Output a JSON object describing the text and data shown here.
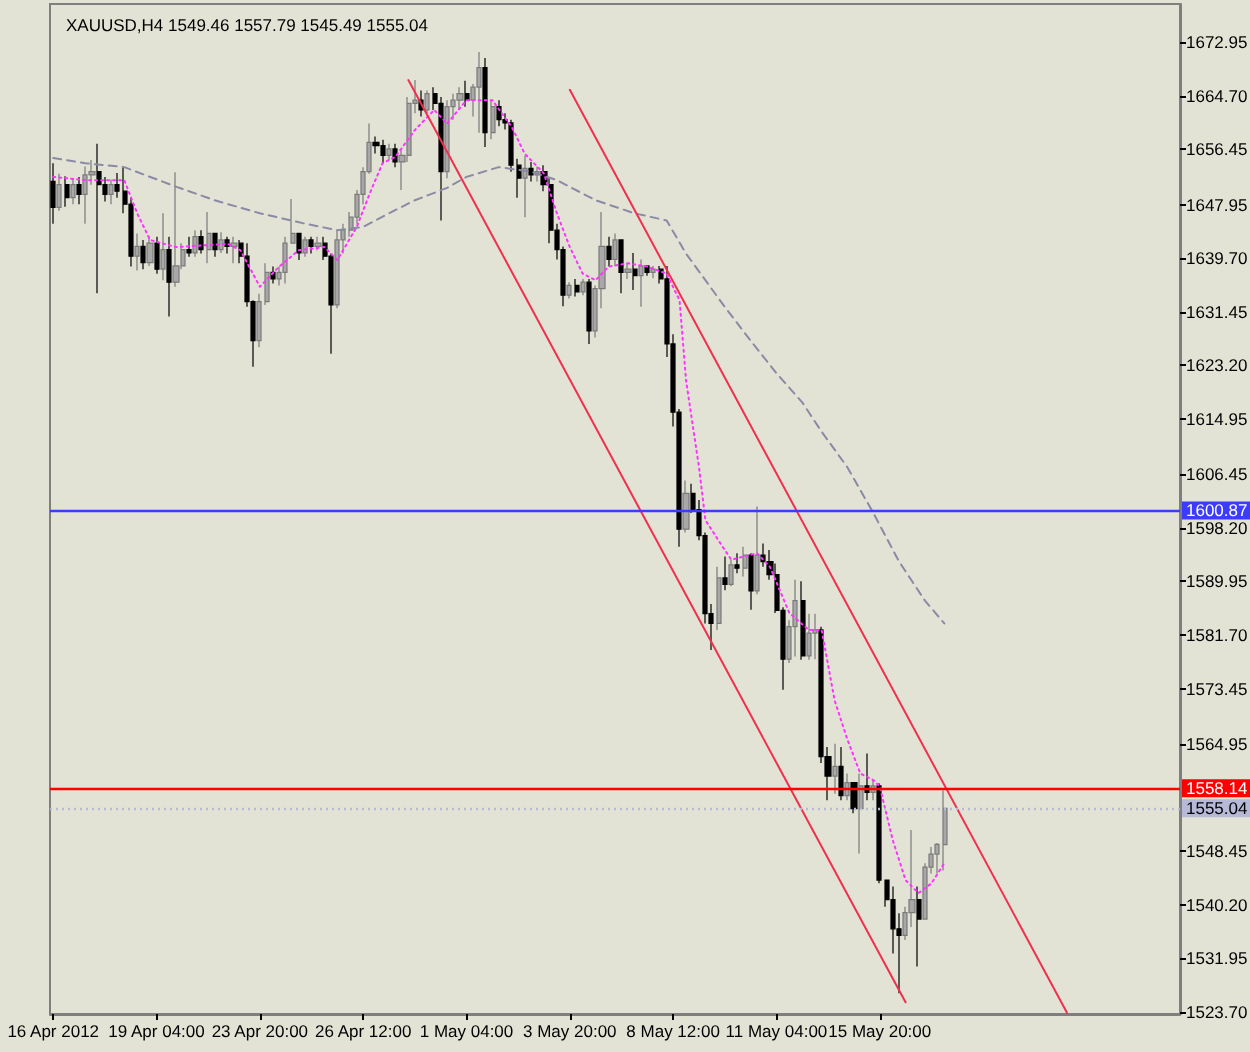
{
  "chart_data": {
    "type": "candlestick",
    "title": "XAUUSD,H4 1549.46 1557.79 1545.49 1555.04",
    "categories": [
      "16 Apr 2012",
      null,
      null,
      null,
      null,
      null,
      null,
      null,
      null,
      null,
      null,
      null,
      null,
      null,
      null,
      null,
      "19 Apr 04:00",
      null,
      null,
      null,
      null,
      null,
      null,
      null,
      null,
      null,
      null,
      null,
      null,
      null,
      null,
      null,
      "23 Apr 20:00",
      null,
      null,
      null,
      null,
      null,
      null,
      null,
      null,
      null,
      null,
      null,
      null,
      null,
      null,
      null,
      "26 Apr 12:00",
      null,
      null,
      null,
      null,
      null,
      null,
      null,
      null,
      null,
      null,
      null,
      null,
      null,
      null,
      null,
      "1 May 04:00",
      null,
      null,
      null,
      null,
      null,
      null,
      null,
      null,
      null,
      null,
      null,
      null,
      null,
      null,
      null,
      "3 May 20:00",
      null,
      null,
      null,
      null,
      null,
      null,
      null,
      null,
      null,
      null,
      null,
      null,
      null,
      null,
      null,
      "8 May 12:00",
      null,
      null,
      null,
      null,
      null,
      null,
      null,
      null,
      null,
      null,
      null,
      null,
      null,
      null,
      null,
      "11 May 04:00",
      null,
      null,
      null,
      null,
      null,
      null,
      null,
      null,
      null,
      null,
      null,
      null,
      null,
      null,
      null,
      "15 May 20:00",
      null,
      null,
      null,
      null,
      null,
      null,
      null,
      null,
      null,
      null,
      null,
      null,
      null,
      null,
      null,
      null,
      null,
      null,
      null,
      null,
      null,
      null,
      null,
      null,
      null,
      null,
      null,
      null,
      null,
      null,
      null,
      null,
      null,
      null,
      null,
      null,
      null,
      null,
      null,
      null,
      null,
      null,
      null,
      null,
      null,
      null
    ],
    "ohlc": [
      [
        1651.5,
        1654.3,
        1645.0,
        1647.5
      ],
      [
        1647.5,
        1652.7,
        1647.0,
        1651.0
      ],
      [
        1651.0,
        1652.3,
        1647.6,
        1649.0
      ],
      [
        1649.0,
        1652.0,
        1648.0,
        1651.0
      ],
      [
        1651.0,
        1652.2,
        1648.0,
        1649.5
      ],
      [
        1649.5,
        1653.8,
        1645.0,
        1652.5
      ],
      [
        1652.5,
        1654.8,
        1651.0,
        1653.0
      ],
      [
        1653.0,
        1657.3,
        1634.3,
        1651.0
      ],
      [
        1651.0,
        1652.2,
        1648.4,
        1649.5
      ],
      [
        1649.5,
        1651.8,
        1648.0,
        1651.0
      ],
      [
        1651.0,
        1652.8,
        1649.0,
        1650.0
      ],
      [
        1650.0,
        1653.8,
        1646.6,
        1648.0
      ],
      [
        1648.0,
        1649.0,
        1638.4,
        1640.0
      ],
      [
        1640.0,
        1643.5,
        1637.8,
        1641.5
      ],
      [
        1641.5,
        1642.5,
        1638.0,
        1639.0
      ],
      [
        1639.0,
        1643.0,
        1638.5,
        1642.0
      ],
      [
        1642.0,
        1643.0,
        1637.3,
        1638.0
      ],
      [
        1638.0,
        1646.6,
        1636.3,
        1641.0
      ],
      [
        1641.0,
        1643.0,
        1630.7,
        1636.0
      ],
      [
        1636.0,
        1652.9,
        1635.3,
        1638.5
      ],
      [
        1638.5,
        1642.0,
        1638.0,
        1641.0
      ],
      [
        1641.0,
        1643.0,
        1639.9,
        1640.5
      ],
      [
        1640.5,
        1644.0,
        1639.9,
        1643.0
      ],
      [
        1643.0,
        1644.0,
        1640.4,
        1641.0
      ],
      [
        1641.0,
        1646.8,
        1638.9,
        1643.5
      ],
      [
        1643.5,
        1643.5,
        1639.9,
        1641.0
      ],
      [
        1641.0,
        1643.7,
        1640.5,
        1642.5
      ],
      [
        1642.5,
        1643.0,
        1640.4,
        1641.5
      ],
      [
        1641.5,
        1643.0,
        1638.9,
        1642.0
      ],
      [
        1642.0,
        1642.5,
        1638.9,
        1640.0
      ],
      [
        1640.0,
        1642.0,
        1632.2,
        1633.0
      ],
      [
        1633.0,
        1633.2,
        1623.0,
        1627.0
      ],
      [
        1627.0,
        1634.2,
        1626.0,
        1633.0
      ],
      [
        1633.0,
        1638.9,
        1632.5,
        1637.5
      ],
      [
        1637.5,
        1638.4,
        1635.8,
        1636.5
      ],
      [
        1636.5,
        1638.4,
        1635.5,
        1637.5
      ],
      [
        1637.5,
        1643.0,
        1635.8,
        1642.0
      ],
      [
        1642.0,
        1648.8,
        1641.9,
        1643.5
      ],
      [
        1643.5,
        1643.5,
        1639.4,
        1640.5
      ],
      [
        1640.5,
        1643.0,
        1639.9,
        1642.5
      ],
      [
        1642.5,
        1643.0,
        1640.4,
        1641.5
      ],
      [
        1641.5,
        1643.0,
        1640.9,
        1642.0
      ],
      [
        1642.0,
        1643.0,
        1639.4,
        1640.0
      ],
      [
        1640.0,
        1640.4,
        1625.0,
        1632.5
      ],
      [
        1632.5,
        1644.0,
        1632.0,
        1642.5
      ],
      [
        1642.5,
        1645.0,
        1640.4,
        1644.0
      ],
      [
        1644.0,
        1646.8,
        1643.0,
        1646.0
      ],
      [
        1646.0,
        1650.2,
        1645.0,
        1649.5
      ],
      [
        1649.5,
        1653.7,
        1648.0,
        1653.0
      ],
      [
        1653.0,
        1660.4,
        1652.7,
        1657.5
      ],
      [
        1657.5,
        1658.4,
        1655.8,
        1657.0
      ],
      [
        1657.0,
        1657.9,
        1654.3,
        1655.5
      ],
      [
        1655.5,
        1657.3,
        1654.8,
        1656.5
      ],
      [
        1656.5,
        1657.3,
        1653.7,
        1654.5
      ],
      [
        1654.5,
        1656.3,
        1650.2,
        1655.5
      ],
      [
        1655.5,
        1664.5,
        1654.5,
        1663.5
      ],
      [
        1663.5,
        1667.1,
        1662.0,
        1664.0
      ],
      [
        1664.0,
        1665.5,
        1661.5,
        1662.5
      ],
      [
        1662.5,
        1665.5,
        1662.0,
        1665.0
      ],
      [
        1665.0,
        1666.0,
        1662.5,
        1663.5
      ],
      [
        1663.5,
        1664.5,
        1645.5,
        1653.0
      ],
      [
        1653.0,
        1664.0,
        1652.0,
        1663.0
      ],
      [
        1663.0,
        1665.0,
        1661.0,
        1664.0
      ],
      [
        1664.0,
        1666.0,
        1662.5,
        1665.0
      ],
      [
        1665.0,
        1667.0,
        1663.0,
        1664.0
      ],
      [
        1664.0,
        1666.5,
        1661.5,
        1666.0
      ],
      [
        1666.0,
        1671.4,
        1659.0,
        1669.0
      ],
      [
        1669.0,
        1670.5,
        1656.8,
        1659.0
      ],
      [
        1659.0,
        1664.0,
        1658.0,
        1663.0
      ],
      [
        1663.0,
        1664.0,
        1660.0,
        1661.0
      ],
      [
        1661.0,
        1662.0,
        1659.5,
        1660.5
      ],
      [
        1660.5,
        1661.0,
        1653.0,
        1654.0
      ],
      [
        1654.0,
        1655.0,
        1649.0,
        1652.0
      ],
      [
        1652.0,
        1655.5,
        1646.0,
        1653.5
      ],
      [
        1653.5,
        1654.5,
        1651.5,
        1652.5
      ],
      [
        1652.5,
        1653.8,
        1651.5,
        1653.0
      ],
      [
        1653.0,
        1654.0,
        1650.0,
        1651.0
      ],
      [
        1651.0,
        1652.0,
        1642.0,
        1644.0
      ],
      [
        1644.0,
        1645.0,
        1639.5,
        1641.0
      ],
      [
        1641.0,
        1641.5,
        1632.3,
        1634.0
      ],
      [
        1634.0,
        1636.0,
        1633.5,
        1635.5
      ],
      [
        1635.5,
        1636.5,
        1633.8,
        1634.5
      ],
      [
        1634.5,
        1636.5,
        1634.0,
        1636.0
      ],
      [
        1636.0,
        1636.5,
        1626.5,
        1628.5
      ],
      [
        1628.5,
        1635.5,
        1627.5,
        1635.0
      ],
      [
        1635.0,
        1646.8,
        1632.0,
        1641.5
      ],
      [
        1641.5,
        1643.0,
        1638.4,
        1639.5
      ],
      [
        1639.5,
        1643.5,
        1638.5,
        1642.5
      ],
      [
        1642.5,
        1642.5,
        1634.3,
        1637.5
      ],
      [
        1637.5,
        1639.0,
        1636.5,
        1638.0
      ],
      [
        1638.0,
        1640.5,
        1634.8,
        1637.0
      ],
      [
        1637.0,
        1639.5,
        1632.2,
        1638.5
      ],
      [
        1638.5,
        1638.5,
        1637.0,
        1637.5
      ],
      [
        1637.5,
        1638.5,
        1636.6,
        1638.0
      ],
      [
        1638.0,
        1638.5,
        1635.8,
        1636.5
      ],
      [
        1636.5,
        1638.5,
        1624.5,
        1626.5
      ],
      [
        1626.5,
        1628.0,
        1613.8,
        1616.0
      ],
      [
        1616.0,
        1616.5,
        1595.3,
        1598.0
      ],
      [
        1598.0,
        1605.5,
        1597.5,
        1603.5
      ],
      [
        1603.5,
        1605.0,
        1600.5,
        1601.0
      ],
      [
        1601.0,
        1602.5,
        1596.3,
        1597.0
      ],
      [
        1597.0,
        1597.5,
        1583.5,
        1585.0
      ],
      [
        1585.0,
        1586.5,
        1579.4,
        1583.5
      ],
      [
        1583.5,
        1592.2,
        1582.5,
        1590.5
      ],
      [
        1590.5,
        1593.8,
        1588.6,
        1589.5
      ],
      [
        1589.5,
        1593.3,
        1589.2,
        1592.5
      ],
      [
        1592.5,
        1594.3,
        1591.2,
        1592.0
      ],
      [
        1592.0,
        1595.3,
        1590.7,
        1594.0
      ],
      [
        1594.0,
        1594.3,
        1585.6,
        1588.5
      ],
      [
        1588.5,
        1601.5,
        1588.0,
        1594.0
      ],
      [
        1594.0,
        1595.8,
        1592.2,
        1593.0
      ],
      [
        1593.0,
        1594.8,
        1590.2,
        1591.0
      ],
      [
        1591.0,
        1592.7,
        1585.1,
        1585.5
      ],
      [
        1585.5,
        1586.0,
        1573.3,
        1578.0
      ],
      [
        1578.0,
        1584.0,
        1577.4,
        1583.0
      ],
      [
        1583.0,
        1590.2,
        1578.4,
        1587.0
      ],
      [
        1587.0,
        1590.0,
        1577.9,
        1578.5
      ],
      [
        1578.5,
        1585.0,
        1577.9,
        1582.0
      ],
      [
        1582.0,
        1585.0,
        1578.0,
        1582.5
      ],
      [
        1582.5,
        1583.0,
        1562.0,
        1563.0
      ],
      [
        1563.0,
        1564.5,
        1556.3,
        1560.0
      ],
      [
        1560.0,
        1565.0,
        1557.3,
        1561.5
      ],
      [
        1561.5,
        1564.5,
        1556.3,
        1557.0
      ],
      [
        1557.0,
        1560.4,
        1556.3,
        1559.0
      ],
      [
        1559.0,
        1559.0,
        1554.3,
        1555.0
      ],
      [
        1555.0,
        1560.4,
        1548.1,
        1558.5
      ],
      [
        1558.5,
        1563.5,
        1556.3,
        1557.5
      ],
      [
        1557.5,
        1559.4,
        1556.3,
        1558.5
      ],
      [
        1558.5,
        1558.9,
        1543.5,
        1544.0
      ],
      [
        1544.0,
        1544.0,
        1539.9,
        1541.0
      ],
      [
        1541.0,
        1543.0,
        1532.7,
        1536.5
      ],
      [
        1536.5,
        1538.9,
        1526.6,
        1535.5
      ],
      [
        1535.5,
        1539.9,
        1534.8,
        1539.0
      ],
      [
        1539.0,
        1551.7,
        1536.8,
        1541.0
      ],
      [
        1541.0,
        1543.0,
        1530.7,
        1538.0
      ],
      [
        1538.0,
        1546.6,
        1538.0,
        1546.0
      ],
      [
        1546.0,
        1549.1,
        1545.0,
        1548.0
      ],
      [
        1548.0,
        1549.7,
        1545.0,
        1549.5
      ],
      [
        1549.46,
        1557.79,
        1545.49,
        1555.04
      ],
      null,
      null,
      null,
      null,
      null,
      null,
      null,
      null,
      null,
      null,
      null,
      null,
      null,
      null,
      null,
      null,
      null,
      null,
      null,
      null,
      null,
      null,
      null,
      null,
      null,
      null,
      null,
      null,
      null,
      null,
      null,
      null,
      null,
      null,
      null,
      null
    ],
    "series": [
      {
        "type": "line",
        "color": "#ff33ff",
        "line_style": "dotted",
        "values": [
          1652.2,
          null,
          null,
          null,
          null,
          1651.7,
          null,
          null,
          null,
          null,
          null,
          1651.7,
          null,
          1646.6,
          null,
          1642.5,
          null,
          null,
          null,
          1641.4,
          null,
          null,
          null,
          null,
          null,
          null,
          null,
          1641.9,
          null,
          1640.9,
          null,
          null,
          1635.3,
          null,
          null,
          1638.4,
          null,
          null,
          1640.9,
          null,
          null,
          null,
          1641.4,
          null,
          1639.4,
          null,
          null,
          1644.5,
          null,
          1649.6,
          null,
          1654.3,
          null,
          1655.3,
          null,
          null,
          1659.4,
          null,
          null,
          1662.5,
          null,
          1660.4,
          null,
          null,
          1664.0,
          null,
          null,
          null,
          1664.0,
          null,
          null,
          1659.9,
          null,
          1655.8,
          null,
          null,
          1652.7,
          null,
          1646.6,
          null,
          1641.4,
          null,
          1637.3,
          null,
          1636.3,
          null,
          1638.4,
          null,
          null,
          1638.9,
          null,
          null,
          1638.4,
          null,
          null,
          1637.3,
          null,
          1633.2,
          1620.9,
          null,
          1607.6,
          1599.4,
          null,
          1596.3,
          null,
          1593.3,
          null,
          null,
          null,
          1594.3,
          null,
          1592.2,
          null,
          null,
          1585.1,
          null,
          null,
          1582.5,
          null,
          1582.5,
          null,
          1571.7,
          null,
          1565.6,
          null,
          1560.4,
          null,
          1559.4,
          1558.4,
          null,
          1550.2,
          null,
          1544.0,
          null,
          1542.0,
          null,
          1543.5,
          null,
          1546.6,
          null,
          null,
          null,
          null,
          null,
          null,
          null,
          null,
          null,
          null,
          null,
          null,
          null,
          null,
          null,
          null,
          null,
          null,
          null,
          null,
          null,
          null,
          null,
          null,
          null,
          null,
          null,
          null,
          null,
          null,
          null,
          null,
          null,
          null,
          null,
          null
        ]
      },
      {
        "type": "line",
        "color": "#8a8aa6",
        "line_style": "dashed",
        "values": [
          1655.1,
          null,
          null,
          null,
          null,
          1654.3,
          null,
          null,
          null,
          null,
          null,
          1653.7,
          null,
          null,
          null,
          null,
          null,
          null,
          null,
          1650.7,
          null,
          null,
          null,
          null,
          null,
          1648.6,
          null,
          null,
          null,
          null,
          null,
          null,
          1646.6,
          null,
          null,
          null,
          null,
          null,
          null,
          1645.0,
          null,
          null,
          null,
          null,
          1644.0,
          null,
          null,
          null,
          1644.5,
          null,
          null,
          null,
          1646.6,
          null,
          null,
          null,
          1648.6,
          null,
          null,
          null,
          null,
          1650.5,
          null,
          null,
          1652.2,
          null,
          null,
          null,
          null,
          1653.7,
          null,
          null,
          null,
          null,
          1653.0,
          null,
          null,
          null,
          1651.7,
          null,
          null,
          null,
          null,
          null,
          1648.6,
          null,
          null,
          null,
          null,
          null,
          1646.6,
          null,
          null,
          null,
          null,
          1645.5,
          null,
          null,
          1640.4,
          null,
          null,
          null,
          null,
          null,
          1632.2,
          null,
          null,
          null,
          1627.0,
          null,
          null,
          null,
          1622.0,
          null,
          null,
          null,
          1617.5,
          null,
          null,
          1613.0,
          null,
          null,
          null,
          1607.5,
          null,
          null,
          null,
          1600.5,
          null,
          null,
          null,
          1593.0,
          null,
          null,
          null,
          1587.0,
          null,
          null,
          1583.5,
          null,
          null,
          null,
          null,
          null,
          null,
          null,
          null,
          null,
          null,
          null,
          null,
          null,
          null,
          null,
          null,
          null,
          null,
          null,
          null,
          null,
          null,
          null,
          null,
          null,
          null,
          null,
          null,
          null,
          null,
          null,
          null,
          null,
          null,
          null,
          null
        ]
      },
      {
        "type": "line",
        "color": "#f0304f",
        "line_style": "solid",
        "values": [
          null,
          null,
          null,
          null,
          null,
          null,
          null,
          null,
          null,
          null,
          null,
          null,
          null,
          null,
          null,
          null,
          null,
          null,
          null,
          null,
          null,
          null,
          null,
          null,
          null,
          null,
          null,
          null,
          null,
          null,
          null,
          null,
          null,
          null,
          null,
          null,
          null,
          null,
          null,
          null,
          null,
          null,
          null,
          null,
          null,
          null,
          null,
          null,
          null,
          null,
          null,
          null,
          null,
          null,
          null,
          null,
          null,
          null,
          null,
          null,
          null,
          null,
          null,
          null,
          null,
          null,
          null,
          null,
          null,
          null,
          null,
          null,
          null,
          null,
          null,
          null,
          null,
          null,
          null,
          null,
          1665.6,
          null,
          null,
          null,
          null,
          null,
          null,
          null,
          null,
          null,
          null,
          null,
          null,
          null,
          null,
          null,
          null,
          null,
          null,
          null,
          null,
          null,
          null,
          null,
          null,
          null,
          null,
          null,
          null,
          null,
          null,
          null,
          null,
          null,
          null,
          null,
          null,
          null,
          null,
          null,
          null,
          null,
          null,
          null,
          null,
          null,
          null,
          null,
          null,
          null,
          null,
          null,
          null,
          null,
          null,
          null,
          null,
          null,
          null,
          null,
          null,
          null,
          null,
          null,
          null,
          null,
          null,
          null,
          null,
          null,
          null,
          null,
          null,
          null,
          null,
          null,
          null,
          1523.6,
          null,
          null,
          null,
          null,
          null,
          null,
          null,
          null,
          null,
          null,
          null,
          null,
          null,
          null,
          null,
          null,
          null
        ]
      },
      {
        "type": "line",
        "color": "#f0304f",
        "line_style": "solid",
        "values": [
          null,
          null,
          null,
          null,
          null,
          null,
          null,
          null,
          null,
          null,
          null,
          null,
          null,
          null,
          null,
          null,
          null,
          null,
          null,
          null,
          null,
          null,
          null,
          null,
          null,
          null,
          null,
          null,
          null,
          null,
          null,
          null,
          null,
          null,
          null,
          null,
          null,
          null,
          null,
          null,
          null,
          null,
          null,
          null,
          null,
          null,
          null,
          null,
          null,
          null,
          null,
          null,
          null,
          null,
          null,
          1667.1,
          null,
          null,
          null,
          null,
          null,
          null,
          null,
          null,
          null,
          null,
          null,
          null,
          null,
          null,
          null,
          null,
          null,
          null,
          null,
          null,
          null,
          null,
          null,
          null,
          null,
          null,
          null,
          null,
          null,
          null,
          null,
          null,
          null,
          null,
          null,
          null,
          null,
          null,
          null,
          null,
          null,
          null,
          null,
          null,
          null,
          null,
          null,
          null,
          null,
          null,
          null,
          null,
          null,
          null,
          null,
          null,
          null,
          null,
          null,
          null,
          null,
          null,
          null,
          null,
          null,
          null,
          null,
          null,
          null,
          null,
          null,
          null,
          null,
          null,
          null,
          null,
          1525.2,
          null,
          null,
          null,
          null,
          null,
          null,
          null,
          null,
          null,
          null,
          null,
          null,
          null,
          null,
          null,
          null,
          null,
          null,
          null,
          null,
          null,
          null,
          null,
          null,
          null,
          null,
          null,
          null,
          null,
          null,
          null,
          null,
          null,
          null,
          null,
          null,
          null,
          null,
          null,
          null,
          null,
          null
        ]
      }
    ],
    "ylim": [
      1523.4,
      1678.8
    ],
    "yticks": [
      {
        "value": 1523.7,
        "label": "1523.70"
      },
      1531.95,
      {
        "value": 1540.2,
        "label": "1540.20"
      },
      1548.45,
      1564.95,
      1573.45,
      {
        "value": 1581.7,
        "label": "1581.70"
      },
      1589.95,
      {
        "value": 1598.2,
        "label": "1598.20"
      },
      1606.45,
      1614.95,
      {
        "value": 1623.2,
        "label": "1623.20"
      },
      1631.45,
      {
        "value": 1639.7,
        "label": "1639.70"
      },
      1647.95,
      1656.45,
      {
        "value": 1664.7,
        "label": "1664.70"
      },
      1672.95
    ],
    "ref_lines": [
      {
        "axis": "y",
        "value": 1600.87,
        "label": "1600.87",
        "color": "#3c3cff"
      },
      {
        "axis": "y",
        "value": 1558.14,
        "label": "1558.14",
        "color": "#ff0000"
      },
      {
        "axis": "y",
        "value": 1555.04,
        "label": "1555.04",
        "color": "#b8b8d8",
        "line_style": "dotted"
      }
    ]
  }
}
